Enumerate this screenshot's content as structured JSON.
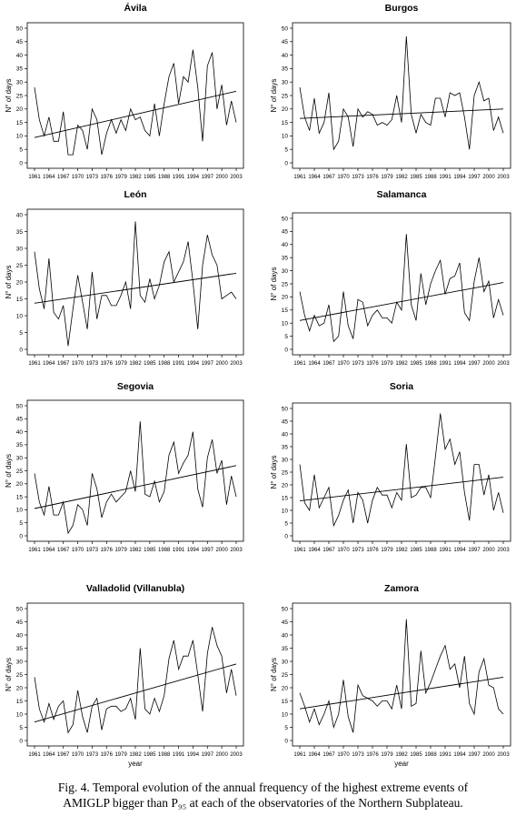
{
  "caption": {
    "line1": "Fig. 4. Temporal evolution of the annual frequency of the highest extreme events of",
    "line2": "AMIGLP bigger than P₉₅ at each of the observatories of the Northern Subplateau."
  },
  "chart_data": [
    {
      "type": "line",
      "title": "Ávila",
      "ylabel": "N° of days",
      "xlabel": "",
      "ylim": [
        0,
        50
      ],
      "yticks": [
        0,
        5,
        10,
        15,
        20,
        25,
        30,
        35,
        40,
        45,
        50
      ],
      "xlim": [
        1961,
        2003
      ],
      "xticks": [
        1961,
        1964,
        1967,
        1970,
        1973,
        1976,
        1979,
        1982,
        1985,
        1988,
        1991,
        1994,
        1997,
        2000,
        2003
      ],
      "x": [
        1961,
        1962,
        1963,
        1964,
        1965,
        1966,
        1967,
        1968,
        1969,
        1970,
        1971,
        1972,
        1973,
        1974,
        1975,
        1976,
        1977,
        1978,
        1979,
        1980,
        1981,
        1982,
        1983,
        1984,
        1985,
        1986,
        1987,
        1988,
        1989,
        1990,
        1991,
        1992,
        1993,
        1994,
        1995,
        1996,
        1997,
        1998,
        1999,
        2000,
        2001,
        2002,
        2003
      ],
      "series": [
        {
          "values": [
            28,
            16,
            10,
            17,
            8,
            8,
            19,
            3,
            3,
            14,
            12,
            5,
            20,
            16,
            3,
            11,
            16,
            11,
            16,
            12,
            20,
            16,
            17,
            12,
            10,
            22,
            10,
            22,
            32,
            37,
            22,
            32,
            30,
            42,
            28,
            8,
            36,
            41,
            20,
            29,
            14,
            23,
            15
          ]
        },
        {
          "values": [
            9.4,
            26.6
          ],
          "x": [
            1961,
            2003
          ],
          "trend": true
        }
      ]
    },
    {
      "type": "line",
      "title": "Burgos",
      "ylabel": "N° of days",
      "xlabel": "",
      "ylim": [
        0,
        50
      ],
      "yticks": [
        0,
        5,
        10,
        15,
        20,
        25,
        30,
        35,
        40,
        45,
        50
      ],
      "xlim": [
        1961,
        2003
      ],
      "xticks": [
        1961,
        1964,
        1967,
        1970,
        1973,
        1976,
        1979,
        1982,
        1985,
        1988,
        1991,
        1994,
        1997,
        2000,
        2003
      ],
      "x": [
        1961,
        1962,
        1963,
        1964,
        1965,
        1966,
        1967,
        1968,
        1969,
        1970,
        1971,
        1972,
        1973,
        1974,
        1975,
        1976,
        1977,
        1978,
        1979,
        1980,
        1981,
        1982,
        1983,
        1984,
        1985,
        1986,
        1987,
        1988,
        1989,
        1990,
        1991,
        1992,
        1993,
        1994,
        1995,
        1996,
        1997,
        1998,
        1999,
        2000,
        2001,
        2002,
        2003
      ],
      "series": [
        {
          "values": [
            28,
            17,
            12,
            24,
            11,
            15,
            26,
            5,
            8,
            20,
            17,
            6,
            20,
            17,
            19,
            18,
            14,
            15,
            14,
            16,
            25,
            15,
            47,
            18,
            11,
            18,
            15,
            14,
            24,
            24,
            17,
            26,
            25,
            26,
            17,
            5,
            25,
            30,
            23,
            24,
            12,
            17,
            11
          ]
        },
        {
          "values": [
            16.5,
            20.0
          ],
          "x": [
            1961,
            2003
          ],
          "trend": true
        }
      ]
    },
    {
      "type": "line",
      "title": "León",
      "ylabel": "N° of days",
      "xlabel": "",
      "ylim": [
        0,
        40
      ],
      "yticks": [
        0,
        5,
        10,
        15,
        20,
        25,
        30,
        35,
        40
      ],
      "xlim": [
        1961,
        2003
      ],
      "xticks": [
        1961,
        1964,
        1967,
        1970,
        1973,
        1976,
        1979,
        1982,
        1985,
        1988,
        1991,
        1994,
        1997,
        2000,
        2003
      ],
      "x": [
        1961,
        1962,
        1963,
        1964,
        1965,
        1966,
        1967,
        1968,
        1969,
        1970,
        1971,
        1972,
        1973,
        1974,
        1975,
        1976,
        1977,
        1978,
        1979,
        1980,
        1981,
        1982,
        1983,
        1984,
        1985,
        1986,
        1987,
        1988,
        1989,
        1990,
        1991,
        1992,
        1993,
        1994,
        1995,
        1996,
        1997,
        1998,
        1999,
        2000,
        2001,
        2002,
        2003
      ],
      "series": [
        {
          "values": [
            29,
            18,
            12,
            27,
            11,
            9,
            13,
            1,
            12,
            22,
            14,
            6,
            23,
            9,
            16,
            16,
            13,
            13,
            16,
            20,
            12,
            38,
            16,
            14,
            21,
            15,
            19,
            26,
            29,
            20,
            23,
            26,
            32,
            20,
            6,
            25,
            34,
            28,
            25,
            15,
            16,
            17,
            15
          ]
        },
        {
          "values": [
            13.7,
            22.6
          ],
          "x": [
            1961,
            2003
          ],
          "trend": true
        }
      ]
    },
    {
      "type": "line",
      "title": "Salamanca",
      "ylabel": "N° of days",
      "xlabel": "",
      "ylim": [
        0,
        50
      ],
      "yticks": [
        0,
        5,
        10,
        15,
        20,
        25,
        30,
        35,
        40,
        45,
        50
      ],
      "xlim": [
        1961,
        2003
      ],
      "xticks": [
        1961,
        1964,
        1967,
        1970,
        1973,
        1976,
        1979,
        1982,
        1985,
        1988,
        1991,
        1994,
        1997,
        2000,
        2003
      ],
      "x": [
        1961,
        1962,
        1963,
        1964,
        1965,
        1966,
        1967,
        1968,
        1969,
        1970,
        1971,
        1972,
        1973,
        1974,
        1975,
        1976,
        1977,
        1978,
        1979,
        1980,
        1981,
        1982,
        1983,
        1984,
        1985,
        1986,
        1987,
        1988,
        1989,
        1990,
        1991,
        1992,
        1993,
        1994,
        1995,
        1996,
        1997,
        1998,
        1999,
        2000,
        2001,
        2002,
        2003
      ],
      "series": [
        {
          "values": [
            22,
            13,
            7,
            13,
            9,
            10,
            17,
            3,
            5,
            22,
            9,
            4,
            19,
            18,
            9,
            13,
            15,
            12,
            12,
            10,
            18,
            15,
            44,
            17,
            11,
            29,
            17,
            25,
            30,
            34,
            21,
            27,
            28,
            33,
            14,
            11,
            26,
            35,
            22,
            26,
            12,
            19,
            13
          ]
        },
        {
          "values": [
            11,
            25.5
          ],
          "x": [
            1961,
            2003
          ],
          "trend": true
        }
      ]
    },
    {
      "type": "line",
      "title": "Segovia",
      "ylabel": "N° of days",
      "xlabel": "",
      "ylim": [
        0,
        50
      ],
      "yticks": [
        0,
        5,
        10,
        15,
        20,
        25,
        30,
        35,
        40,
        45,
        50
      ],
      "xlim": [
        1961,
        2003
      ],
      "xticks": [
        1961,
        1964,
        1967,
        1970,
        1973,
        1976,
        1979,
        1982,
        1985,
        1988,
        1991,
        1994,
        1997,
        2000,
        2003
      ],
      "x": [
        1961,
        1962,
        1963,
        1964,
        1965,
        1966,
        1967,
        1968,
        1969,
        1970,
        1971,
        1972,
        1973,
        1974,
        1975,
        1976,
        1977,
        1978,
        1979,
        1980,
        1981,
        1982,
        1983,
        1984,
        1985,
        1986,
        1987,
        1988,
        1989,
        1990,
        1991,
        1992,
        1993,
        1994,
        1995,
        1996,
        1997,
        1998,
        1999,
        2000,
        2001,
        2002,
        2003
      ],
      "series": [
        {
          "values": [
            24,
            13,
            8,
            19,
            8,
            8,
            13,
            1,
            4,
            12,
            10,
            4,
            24,
            18,
            7,
            13,
            16,
            13,
            15,
            17,
            25,
            17,
            44,
            16,
            15,
            21,
            13,
            17,
            31,
            36,
            24,
            28,
            31,
            40,
            18,
            11,
            30,
            37,
            24,
            29,
            12,
            23,
            15
          ]
        },
        {
          "values": [
            10.5,
            27.0
          ],
          "x": [
            1961,
            2003
          ],
          "trend": true
        }
      ]
    },
    {
      "type": "line",
      "title": "Soria",
      "ylabel": "N° of days",
      "xlabel": "",
      "ylim": [
        0,
        50
      ],
      "yticks": [
        0,
        5,
        10,
        15,
        20,
        25,
        30,
        35,
        40,
        45,
        50
      ],
      "xlim": [
        1961,
        2003
      ],
      "xticks": [
        1961,
        1964,
        1967,
        1970,
        1973,
        1976,
        1979,
        1982,
        1985,
        1988,
        1991,
        1994,
        1997,
        2000,
        2003
      ],
      "x": [
        1961,
        1962,
        1963,
        1964,
        1965,
        1966,
        1967,
        1968,
        1969,
        1970,
        1971,
        1972,
        1973,
        1974,
        1975,
        1976,
        1977,
        1978,
        1979,
        1980,
        1981,
        1982,
        1983,
        1984,
        1985,
        1986,
        1987,
        1988,
        1989,
        1990,
        1991,
        1992,
        1993,
        1994,
        1995,
        1996,
        1997,
        1998,
        1999,
        2000,
        2001,
        2002,
        2003
      ],
      "series": [
        {
          "values": [
            28,
            13,
            10,
            24,
            11,
            15,
            19,
            4,
            8,
            14,
            18,
            5,
            17,
            14,
            5,
            14,
            19,
            16,
            16,
            11,
            17,
            14,
            36,
            15,
            16,
            19,
            19,
            15,
            31,
            48,
            34,
            38,
            28,
            33,
            17,
            6,
            28,
            28,
            16,
            24,
            10,
            17,
            9
          ]
        },
        {
          "values": [
            13.7,
            23.0
          ],
          "x": [
            1961,
            2003
          ],
          "trend": true
        }
      ]
    },
    {
      "type": "line",
      "title": "Valladolid (Villanubla)",
      "ylabel": "N° of days",
      "xlabel": "year",
      "ylim": [
        0,
        50
      ],
      "yticks": [
        0,
        5,
        10,
        15,
        20,
        25,
        30,
        35,
        40,
        45,
        50
      ],
      "xlim": [
        1961,
        2003
      ],
      "xticks": [
        1961,
        1964,
        1967,
        1970,
        1973,
        1976,
        1979,
        1982,
        1985,
        1988,
        1991,
        1994,
        1997,
        2000,
        2003
      ],
      "x": [
        1961,
        1962,
        1963,
        1964,
        1965,
        1966,
        1967,
        1968,
        1969,
        1970,
        1971,
        1972,
        1973,
        1974,
        1975,
        1976,
        1977,
        1978,
        1979,
        1980,
        1981,
        1982,
        1983,
        1984,
        1985,
        1986,
        1987,
        1988,
        1989,
        1990,
        1991,
        1992,
        1993,
        1994,
        1995,
        1996,
        1997,
        1998,
        1999,
        2000,
        2001,
        2002,
        2003
      ],
      "series": [
        {
          "values": [
            24,
            12,
            7,
            14,
            8,
            13,
            15,
            3,
            6,
            19,
            9,
            3,
            13,
            16,
            4,
            12,
            13,
            13,
            11,
            12,
            16,
            8,
            35,
            12,
            10,
            16,
            11,
            17,
            31,
            38,
            27,
            32,
            32,
            38,
            25,
            11,
            33,
            43,
            36,
            32,
            18,
            27,
            17
          ]
        },
        {
          "values": [
            7.0,
            29.0
          ],
          "x": [
            1961,
            2003
          ],
          "trend": true
        }
      ]
    },
    {
      "type": "line",
      "title": "Zamora",
      "ylabel": "N° of days",
      "xlabel": "year",
      "ylim": [
        0,
        50
      ],
      "yticks": [
        0,
        5,
        10,
        15,
        20,
        25,
        30,
        35,
        40,
        45,
        50
      ],
      "xlim": [
        1961,
        2003
      ],
      "xticks": [
        1961,
        1964,
        1967,
        1970,
        1973,
        1976,
        1979,
        1982,
        1985,
        1988,
        1991,
        1994,
        1997,
        2000,
        2003
      ],
      "x": [
        1961,
        1962,
        1963,
        1964,
        1965,
        1966,
        1967,
        1968,
        1969,
        1970,
        1971,
        1972,
        1973,
        1974,
        1975,
        1976,
        1977,
        1978,
        1979,
        1980,
        1981,
        1982,
        1983,
        1984,
        1985,
        1986,
        1987,
        1988,
        1989,
        1990,
        1991,
        1992,
        1993,
        1994,
        1995,
        1996,
        1997,
        1998,
        1999,
        2000,
        2001,
        2002,
        2003
      ],
      "series": [
        {
          "values": [
            18,
            13,
            7,
            12,
            6,
            10,
            15,
            5,
            10,
            23,
            9,
            3,
            21,
            17,
            16,
            15,
            13,
            15,
            15,
            12,
            21,
            12,
            46,
            13,
            14,
            34,
            18,
            22,
            27,
            32,
            36,
            27,
            29,
            20,
            32,
            14,
            10,
            26,
            31,
            21,
            20,
            12,
            10
          ]
        },
        {
          "values": [
            12.0,
            24.0
          ],
          "x": [
            1961,
            2003
          ],
          "trend": true
        }
      ]
    }
  ]
}
